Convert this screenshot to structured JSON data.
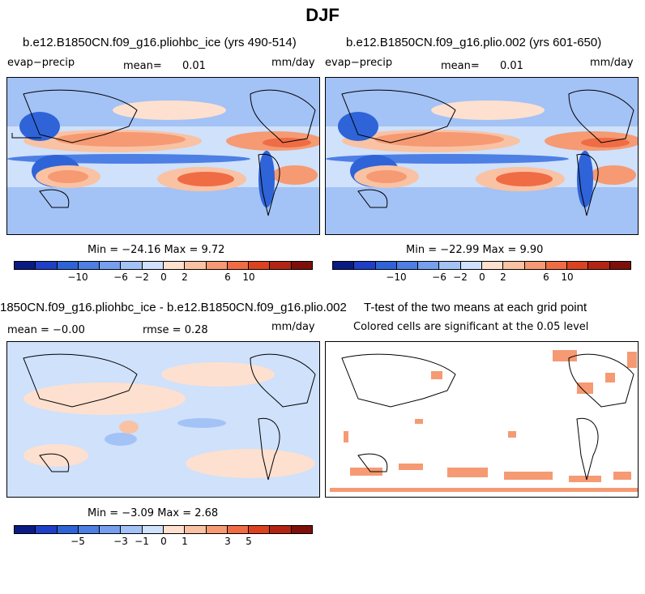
{
  "figure": {
    "season": "DJF"
  },
  "panels": [
    {
      "title": "b.e12.B1850CN.f09_g16.pliohbc_ice (yrs 490-514)",
      "variable": "evap−precip",
      "mean_label": "mean=",
      "mean_value": "0.01",
      "units": "mm/day",
      "stats": "Min = −24.16 Max =   9.72"
    },
    {
      "title": "b.e12.B1850CN.f09_g16.plio.002 (yrs 601-650)",
      "variable": "evap−precip",
      "mean_label": "mean=",
      "mean_value": "0.01",
      "units": "mm/day",
      "stats": "Min = −22.99 Max =   9.90"
    },
    {
      "title": "1850CN.f09_g16.pliohbc_ice - b.e12.B1850CN.f09_g16.plio.002",
      "mean_text": "mean =  −0.00",
      "rmse_text": "rmse =   0.28",
      "units": "mm/day",
      "stats": "Min =  −3.09 Max =   2.68"
    },
    {
      "title": "T-test of the two means at each grid point",
      "note": "Colored cells are significant at the 0.05 level"
    }
  ],
  "colorbars": {
    "colors": [
      "#0a1b84",
      "#1f3fc8",
      "#2f63d8",
      "#4d7fe4",
      "#769ff0",
      "#a3c2f6",
      "#cfe1fb",
      "#fde0cf",
      "#f9c2a3",
      "#f59a73",
      "#ef6c45",
      "#dc4220",
      "#b32412",
      "#7e0f0a"
    ],
    "top_ticks": [
      "−10",
      "−6",
      "−2",
      "0",
      "2",
      "6",
      "10"
    ],
    "diff_ticks": [
      "−5",
      "−3",
      "−1",
      "0",
      "1",
      "3",
      "5"
    ]
  }
}
